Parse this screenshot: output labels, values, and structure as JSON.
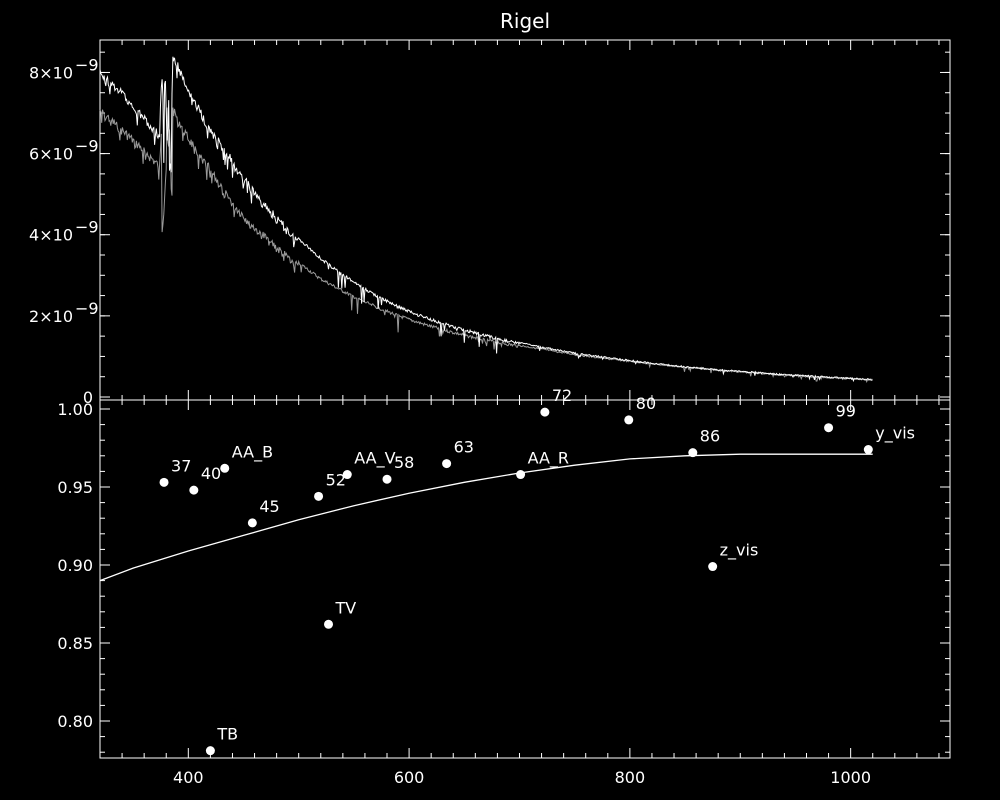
{
  "chart_data": [
    {
      "type": "line",
      "title": "Rigel",
      "xlim": [
        320,
        1090
      ],
      "ylim": [
        0,
        8.8e-09
      ],
      "y_tick_labels": [
        "0",
        "2×10",
        "4×10",
        "6×10",
        "8×10"
      ],
      "y_tick_exponent": "−9",
      "series": [
        {
          "color": "#ffffff",
          "x": [
            320,
            340,
            360,
            374,
            376,
            380,
            386,
            390,
            400,
            420,
            440,
            460,
            480,
            500,
            520,
            540,
            560,
            580,
            600,
            620,
            640,
            660,
            680,
            700,
            720,
            740,
            760,
            780,
            800,
            820,
            840,
            860,
            880,
            900,
            920,
            940,
            960,
            980,
            1000,
            1020
          ],
          "y": [
            8.1e-09,
            7.6e-09,
            7e-09,
            6.6e-09,
            8.3e-09,
            8.7e-09,
            8.5e-09,
            8.3e-09,
            7.7e-09,
            6.7e-09,
            5.9e-09,
            5.15e-09,
            4.5e-09,
            3.95e-09,
            3.45e-09,
            3.05e-09,
            2.7e-09,
            2.4e-09,
            2.15e-09,
            1.95e-09,
            1.77e-09,
            1.62e-09,
            1.48e-09,
            1.36e-09,
            1.25e-09,
            1.15e-09,
            1.06e-09,
            9.9e-10,
            9.2e-10,
            8.5e-10,
            7.9e-10,
            7.4e-10,
            6.9e-10,
            6.5e-10,
            6.1e-10,
            5.7e-10,
            5.4e-10,
            5.1e-10,
            4.8e-10,
            4.5e-10
          ]
        },
        {
          "color": "#9a9a9a",
          "x": [
            320,
            340,
            360,
            374,
            376,
            380,
            386,
            390,
            400,
            420,
            440,
            460,
            480,
            500,
            520,
            540,
            560,
            580,
            600,
            620,
            640,
            660,
            680,
            700,
            720,
            740,
            760,
            780,
            800,
            820,
            840,
            860,
            880,
            900,
            920,
            940,
            960,
            980,
            1000,
            1020
          ],
          "y": [
            7.2e-09,
            6.7e-09,
            6.2e-09,
            5.8e-09,
            7e-09,
            7.3e-09,
            7.2e-09,
            7e-09,
            6.5e-09,
            5.7e-09,
            4.9e-09,
            4.3e-09,
            3.8e-09,
            3.35e-09,
            2.95e-09,
            2.65e-09,
            2.38e-09,
            2.15e-09,
            1.95e-09,
            1.78e-09,
            1.63e-09,
            1.5e-09,
            1.39e-09,
            1.29e-09,
            1.2e-09,
            1.11e-09,
            1.03e-09,
            9.6e-10,
            9e-10,
            8.4e-10,
            7.8e-10,
            7.3e-10,
            6.8e-10,
            6.4e-10,
            6e-10,
            5.6e-10,
            5.3e-10,
            5e-10,
            4.7e-10,
            4.5e-10
          ]
        }
      ]
    },
    {
      "type": "scatter",
      "xlim": [
        320,
        1090
      ],
      "ylim": [
        0.775,
        1.0
      ],
      "x_tick_labels": [
        "400",
        "600",
        "800",
        "1000"
      ],
      "x_tick_values": [
        400,
        600,
        800,
        1000
      ],
      "y_tick_labels": [
        "0.80",
        "0.85",
        "0.90",
        "0.95",
        "1.00"
      ],
      "y_tick_values": [
        0.8,
        0.85,
        0.9,
        0.95,
        1.0
      ],
      "points": [
        {
          "label": "37",
          "x": 378,
          "y": 0.953
        },
        {
          "label": "40",
          "x": 405,
          "y": 0.948
        },
        {
          "label": "AA_B",
          "x": 433,
          "y": 0.962
        },
        {
          "label": "45",
          "x": 458,
          "y": 0.927
        },
        {
          "label": "TB",
          "x": 420,
          "y": 0.781
        },
        {
          "label": "52",
          "x": 518,
          "y": 0.944
        },
        {
          "label": "AA_V",
          "x": 544,
          "y": 0.958
        },
        {
          "label": "TV",
          "x": 527,
          "y": 0.862
        },
        {
          "label": "58",
          "x": 580,
          "y": 0.955
        },
        {
          "label": "63",
          "x": 634,
          "y": 0.965
        },
        {
          "label": "AA_R",
          "x": 701,
          "y": 0.958
        },
        {
          "label": "72",
          "x": 723,
          "y": 0.998
        },
        {
          "label": "80",
          "x": 799,
          "y": 0.993
        },
        {
          "label": "86",
          "x": 857,
          "y": 0.972
        },
        {
          "label": "z_vis",
          "x": 875,
          "y": 0.899
        },
        {
          "label": "99",
          "x": 980,
          "y": 0.988
        },
        {
          "label": "y_vis",
          "x": 1016,
          "y": 0.974
        }
      ],
      "curve": {
        "x": [
          320,
          350,
          400,
          450,
          500,
          550,
          600,
          650,
          700,
          750,
          800,
          850,
          900,
          950,
          1000,
          1020
        ],
        "y": [
          0.89,
          0.898,
          0.909,
          0.919,
          0.929,
          0.938,
          0.946,
          0.953,
          0.959,
          0.964,
          0.968,
          0.97,
          0.971,
          0.971,
          0.971,
          0.971
        ]
      }
    }
  ]
}
